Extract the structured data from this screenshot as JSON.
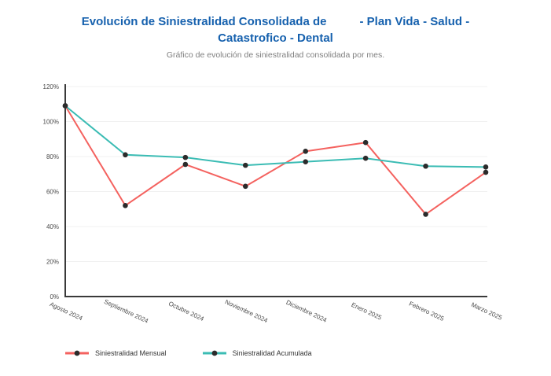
{
  "header": {
    "title_part1": "Evolución de Siniestralidad Consolidada de",
    "title_part2": "- Plan Vida - Salud -",
    "title_line2": "Catastrofico - Dental",
    "subtitle": "Gráfico de evolución de siniestralidad consolidada por mes.",
    "title_color": "#1661ae"
  },
  "chart_data": {
    "type": "line",
    "title": "Evolución de Siniestralidad Consolidada de - Plan Vida - Salud - Catastrofico - Dental",
    "subtitle": "Gráfico de evolución de siniestralidad consolidada por mes.",
    "categories": [
      "Agosto 2024",
      "Septiembre 2024",
      "Octubre 2024",
      "Noviembre 2024",
      "Diciembre 2024",
      "Enero 2025",
      "Febrero 2025",
      "Marzo 2025"
    ],
    "series": [
      {
        "name": "Siniestralidad Mensual",
        "color": "#f4625f",
        "values": [
          109,
          52,
          75.5,
          63,
          83,
          88,
          47,
          71
        ]
      },
      {
        "name": "Siniestralidad Acumulada",
        "color": "#3bbcb4",
        "values": [
          109,
          81,
          79.5,
          75,
          77,
          79,
          74.5,
          74
        ]
      }
    ],
    "ylabel": "",
    "xlabel": "",
    "ylim": [
      0,
      120
    ],
    "y_tick_step": 20,
    "y_tick_labels": [
      "0%",
      "20%",
      "40%",
      "60%",
      "80%",
      "100%",
      "120%"
    ],
    "grid": "horizontal",
    "legend_position": "bottom",
    "marker_color": "#2b2b2b",
    "grid_color": "#f0f0f0",
    "axis_color": "#3a3a3a",
    "tick_label_color": "#4a4a4a"
  },
  "legend": {
    "items": [
      {
        "label": "Siniestralidad Mensual"
      },
      {
        "label": "Siniestralidad Acumulada"
      }
    ]
  }
}
